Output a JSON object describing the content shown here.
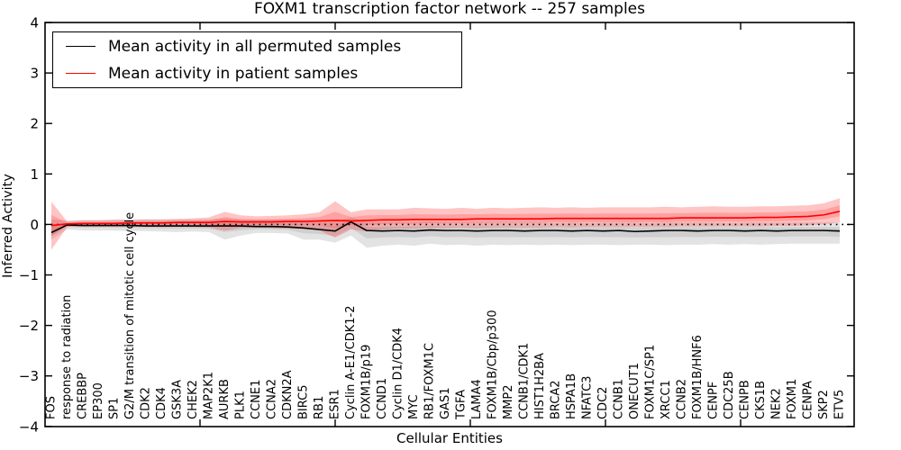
{
  "window": {
    "title": "FOXM1 transcription factor network -- 257 samples"
  },
  "chart_data": {
    "type": "line",
    "title": "FOXM1 transcription factor network -- 257 samples",
    "xlabel": "Cellular Entities",
    "ylabel": "Inferred Activity",
    "ylim": [
      -4,
      4
    ],
    "yticks": [
      4,
      3,
      2,
      1,
      0,
      -1,
      -2,
      -3,
      -4
    ],
    "ytick_labels": [
      "4",
      "3",
      "2",
      "1",
      "0",
      "−1",
      "−2",
      "−3",
      "−4"
    ],
    "grid": false,
    "zero_reference_line": "dotted",
    "legend_position": "upper left",
    "categories": [
      "FOS",
      "response to radiation",
      "CREBBP",
      "EP300",
      "SP1",
      "G2/M transition of mitotic cell cycle",
      "CDK2",
      "CDK4",
      "GSK3A",
      "CHEK2",
      "MAP2K1",
      "AURKB",
      "PLK1",
      "CCNE1",
      "CCNA2",
      "CDKN2A",
      "BIRC5",
      "RB1",
      "ESR1",
      "Cyclin A-E1/CDK1-2",
      "FOXM1B/p19",
      "CCND1",
      "Cyclin D1/CDK4",
      "MYC",
      "RB1/FOXM1C",
      "GAS1",
      "TGFA",
      "LAMA4",
      "FOXM1B/Cbp/p300",
      "MMP2",
      "CCNB1/CDK1",
      "HIST1H2BA",
      "BRCA2",
      "HSPA1B",
      "NFATC3",
      "CDC2",
      "CCNB1",
      "ONECUT1",
      "FOXM1C/SP1",
      "XRCC1",
      "CCNB2",
      "FOXM1B/HNF6",
      "CENPF",
      "CDC25B",
      "CENPB",
      "CKS1B",
      "NEK2",
      "FOXM1",
      "CENPA",
      "SKP2",
      "ETV5"
    ],
    "series": [
      {
        "name": "Mean activity in all permuted samples",
        "color": "#000000",
        "band_color": "#000000",
        "band_opacity": 0.11,
        "values": [
          -0.16,
          -0.01,
          -0.02,
          -0.02,
          -0.02,
          -0.02,
          -0.03,
          -0.03,
          -0.03,
          -0.03,
          -0.03,
          -0.03,
          -0.03,
          -0.04,
          -0.04,
          -0.05,
          -0.07,
          -0.1,
          -0.13,
          0.05,
          -0.12,
          -0.13,
          -0.12,
          -0.13,
          -0.11,
          -0.12,
          -0.12,
          -0.13,
          -0.12,
          -0.12,
          -0.13,
          -0.12,
          -0.12,
          -0.13,
          -0.12,
          -0.13,
          -0.12,
          -0.14,
          -0.13,
          -0.12,
          -0.12,
          -0.13,
          -0.12,
          -0.12,
          -0.13,
          -0.12,
          -0.13,
          -0.12,
          -0.12,
          -0.12,
          -0.13
        ],
        "band_low": [
          -0.3,
          -0.1,
          -0.12,
          -0.12,
          -0.12,
          -0.13,
          -0.13,
          -0.14,
          -0.15,
          -0.14,
          -0.15,
          -0.3,
          -0.22,
          -0.17,
          -0.17,
          -0.18,
          -0.3,
          -0.3,
          -0.36,
          -0.22,
          -0.46,
          -0.42,
          -0.4,
          -0.42,
          -0.38,
          -0.41,
          -0.4,
          -0.42,
          -0.4,
          -0.41,
          -0.4,
          -0.41,
          -0.4,
          -0.41,
          -0.4,
          -0.4,
          -0.41,
          -0.4,
          -0.4,
          -0.41,
          -0.4,
          -0.4,
          -0.39,
          -0.4,
          -0.39,
          -0.4,
          -0.39,
          -0.38,
          -0.38,
          -0.38,
          -0.38
        ],
        "band_high": [
          0.1,
          0.08,
          0.09,
          0.09,
          0.1,
          0.1,
          0.1,
          0.1,
          0.1,
          0.1,
          0.1,
          0.12,
          0.1,
          0.1,
          0.1,
          0.1,
          0.09,
          0.08,
          0.06,
          0.14,
          0.05,
          0.04,
          0.05,
          0.04,
          0.06,
          0.04,
          0.04,
          0.04,
          0.04,
          0.04,
          0.04,
          0.04,
          0.03,
          0.04,
          0.03,
          0.04,
          0.04,
          0.04,
          0.03,
          0.04,
          0.04,
          0.04,
          0.04,
          0.03,
          0.04,
          0.04,
          0.04,
          0.04,
          0.04,
          0.04,
          0.04
        ]
      },
      {
        "name": "Mean activity in patient samples",
        "color": "#ff0000",
        "band_color": "#ff2a2a",
        "band_opacity": 0.28,
        "values": [
          -0.02,
          0.01,
          0.02,
          0.02,
          0.02,
          0.03,
          0.03,
          0.03,
          0.04,
          0.04,
          0.04,
          0.06,
          0.05,
          0.05,
          0.05,
          0.06,
          0.06,
          0.07,
          0.08,
          0.07,
          0.08,
          0.09,
          0.09,
          0.1,
          0.1,
          0.1,
          0.1,
          0.11,
          0.11,
          0.11,
          0.11,
          0.11,
          0.12,
          0.12,
          0.12,
          0.12,
          0.12,
          0.12,
          0.12,
          0.12,
          0.13,
          0.13,
          0.13,
          0.13,
          0.13,
          0.14,
          0.14,
          0.15,
          0.16,
          0.19,
          0.26
        ],
        "band_low": [
          -0.5,
          -0.05,
          -0.04,
          -0.04,
          -0.04,
          -0.04,
          -0.04,
          -0.05,
          -0.04,
          -0.05,
          -0.06,
          -0.12,
          -0.07,
          -0.06,
          -0.07,
          -0.08,
          -0.09,
          -0.12,
          -0.26,
          -0.1,
          -0.14,
          -0.1,
          -0.08,
          -0.08,
          -0.07,
          -0.07,
          -0.06,
          -0.07,
          -0.06,
          -0.06,
          -0.06,
          -0.06,
          -0.05,
          -0.06,
          -0.05,
          -0.05,
          -0.05,
          -0.05,
          -0.05,
          -0.05,
          -0.04,
          -0.04,
          -0.04,
          -0.04,
          -0.04,
          -0.04,
          -0.03,
          -0.03,
          -0.02,
          0.0,
          0.04
        ],
        "band_high": [
          0.45,
          0.06,
          0.08,
          0.08,
          0.09,
          0.09,
          0.1,
          0.1,
          0.11,
          0.12,
          0.14,
          0.25,
          0.18,
          0.16,
          0.17,
          0.18,
          0.2,
          0.24,
          0.46,
          0.24,
          0.3,
          0.3,
          0.3,
          0.33,
          0.32,
          0.31,
          0.33,
          0.31,
          0.33,
          0.32,
          0.33,
          0.34,
          0.33,
          0.34,
          0.33,
          0.34,
          0.34,
          0.34,
          0.34,
          0.35,
          0.34,
          0.35,
          0.36,
          0.35,
          0.35,
          0.36,
          0.36,
          0.37,
          0.38,
          0.42,
          0.52
        ]
      }
    ]
  }
}
